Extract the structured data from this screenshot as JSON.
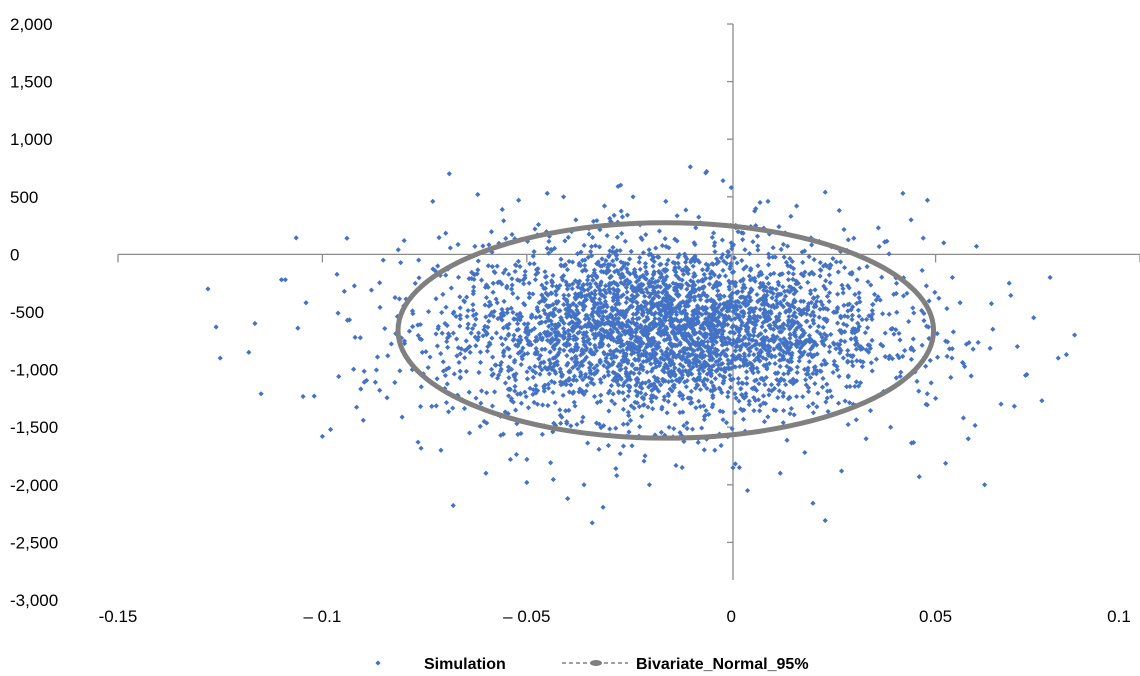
{
  "chart_data": {
    "type": "scatter",
    "title": "",
    "xlabel": "",
    "ylabel": "",
    "xlim": [
      -0.15,
      0.1
    ],
    "ylim": [
      -3000,
      2000
    ],
    "x_ticks": [
      -0.15,
      -0.1,
      -0.05,
      0,
      0.05,
      0.1
    ],
    "x_tick_labels": [
      "-0.15",
      "– 0.1",
      "– 0.05",
      "0",
      "0.05",
      "0.1"
    ],
    "y_ticks": [
      2000,
      1500,
      1000,
      500,
      0,
      -500,
      -1000,
      -1500,
      -2000,
      -2500,
      -3000
    ],
    "y_tick_labels": [
      "2,000",
      "1,500",
      "1,000",
      "500",
      "0",
      "-500",
      "-1,000",
      "-1,500",
      "-2,000",
      "-2,500",
      "-3,000"
    ],
    "grid": false,
    "legend_position": "bottom",
    "series": [
      {
        "name": "Simulation",
        "type": "scatter",
        "color": "#4472C4",
        "marker": "diamond",
        "points": [
          [
            -0.128,
            -300
          ],
          [
            -0.126,
            -630
          ],
          [
            -0.125,
            -900
          ],
          [
            -0.118,
            -850
          ],
          [
            -0.115,
            -1210
          ],
          [
            -0.11,
            -220
          ],
          [
            -0.106,
            -640
          ],
          [
            -0.104,
            -420
          ],
          [
            -0.102,
            -1230
          ],
          [
            -0.1,
            -1580
          ],
          [
            -0.098,
            -1520
          ],
          [
            -0.096,
            -1060
          ],
          [
            -0.094,
            140
          ],
          [
            -0.092,
            -720
          ],
          [
            -0.09,
            -1440
          ],
          [
            -0.088,
            -310
          ],
          [
            -0.086,
            -1180
          ],
          [
            -0.084,
            -880
          ],
          [
            -0.08,
            120
          ],
          [
            -0.078,
            -1000
          ],
          [
            -0.076,
            -1320
          ],
          [
            -0.073,
            460
          ],
          [
            -0.071,
            -1700
          ],
          [
            -0.07,
            -600
          ],
          [
            -0.068,
            -2180
          ],
          [
            -0.066,
            -820
          ],
          [
            -0.064,
            -1550
          ],
          [
            -0.062,
            520
          ],
          [
            -0.06,
            -1900
          ],
          [
            -0.058,
            -150
          ],
          [
            -0.056,
            390
          ],
          [
            -0.054,
            -1780
          ],
          [
            -0.052,
            470
          ],
          [
            -0.05,
            -1980
          ],
          [
            -0.048,
            220
          ],
          [
            -0.045,
            530
          ],
          [
            -0.043,
            -1500
          ],
          [
            -0.041,
            500
          ],
          [
            -0.04,
            -2120
          ],
          [
            -0.038,
            300
          ],
          [
            -0.036,
            -2000
          ],
          [
            -0.034,
            -2330
          ],
          [
            -0.031,
            420
          ],
          [
            -0.028,
            -1920
          ],
          [
            -0.024,
            500
          ],
          [
            -0.02,
            -2000
          ],
          [
            -0.016,
            460
          ],
          [
            -0.012,
            -1850
          ],
          [
            -0.01,
            760
          ],
          [
            -0.006,
            720
          ],
          [
            -0.004,
            -1700
          ],
          [
            -0.002,
            640
          ],
          [
            0.0,
            580
          ],
          [
            0.002,
            -1850
          ],
          [
            0.004,
            -2050
          ],
          [
            0.006,
            250
          ],
          [
            0.009,
            460
          ],
          [
            0.012,
            -1900
          ],
          [
            0.016,
            420
          ],
          [
            0.018,
            -1720
          ],
          [
            0.02,
            -2160
          ],
          [
            0.023,
            540
          ],
          [
            0.023,
            -2310
          ],
          [
            0.027,
            -1880
          ],
          [
            0.03,
            140
          ],
          [
            0.033,
            -1600
          ],
          [
            0.036,
            230
          ],
          [
            0.039,
            -1500
          ],
          [
            0.042,
            530
          ],
          [
            0.044,
            300
          ],
          [
            0.046,
            -1930
          ],
          [
            0.048,
            470
          ],
          [
            0.05,
            -1250
          ],
          [
            0.052,
            100
          ],
          [
            0.054,
            -900
          ],
          [
            0.056,
            -420
          ],
          [
            0.058,
            -1600
          ],
          [
            0.06,
            70
          ],
          [
            0.062,
            -2000
          ],
          [
            0.064,
            -650
          ],
          [
            0.066,
            -1300
          ],
          [
            0.068,
            -250
          ],
          [
            0.07,
            -800
          ],
          [
            0.072,
            -1050
          ],
          [
            0.074,
            -550
          ],
          [
            0.076,
            -1270
          ],
          [
            0.078,
            -200
          ],
          [
            0.08,
            -900
          ],
          [
            0.082,
            -870
          ],
          [
            0.084,
            -700
          ]
        ]
      },
      {
        "name": "Bivariate_Normal_95%",
        "type": "ellipse",
        "color": "#808080",
        "line_style": "dashed",
        "center": [
          -0.016,
          -660
        ],
        "semi_axis_x": 0.0655,
        "semi_axis_y": 935
      }
    ]
  }
}
